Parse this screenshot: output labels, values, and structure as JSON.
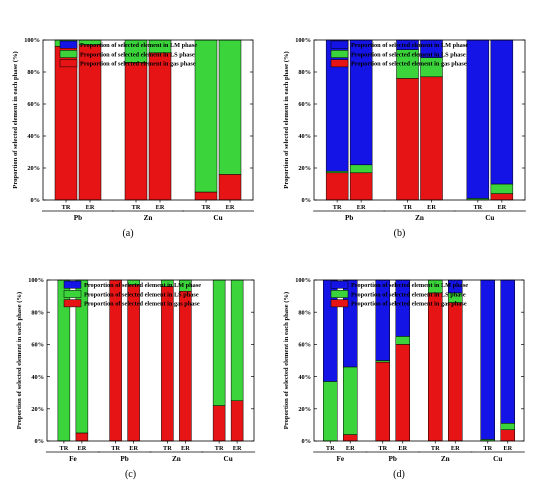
{
  "legend_labels": [
    "Proportion of selected element in LM phase",
    "Proportion of selected element in LS phase",
    "Proportion of selected element in gas phase"
  ],
  "colors": {
    "LM": "#1414e6",
    "LS": "#3bd43b",
    "gas": "#e61414"
  },
  "chart_data": [
    {
      "type": "bar",
      "panel_label": "(a)",
      "ylabel": "Proportion of selected element in each phase (%)",
      "ylim": [
        0,
        100
      ],
      "yticks": [
        "0%",
        "20%",
        "40%",
        "60%",
        "80%",
        "100%"
      ],
      "groups": [
        "Pb",
        "Zn",
        "Cu"
      ],
      "bar_labels": [
        "TR",
        "ER"
      ],
      "legend": [
        "Proportion of selected element in LM phase",
        "Proportion of selected element in LS phase",
        "Proportion of selected element in gas phase"
      ],
      "bars": [
        {
          "group": "Pb",
          "label": "TR",
          "gas": 96,
          "LS": 4,
          "LM": 0
        },
        {
          "group": "Pb",
          "label": "ER",
          "gas": 97,
          "LS": 3,
          "LM": 0
        },
        {
          "group": "Zn",
          "label": "TR",
          "gas": 86,
          "LS": 14,
          "LM": 0
        },
        {
          "group": "Zn",
          "label": "ER",
          "gas": 92,
          "LS": 8,
          "LM": 0
        },
        {
          "group": "Cu",
          "label": "TR",
          "gas": 5,
          "LS": 95,
          "LM": 0
        },
        {
          "group": "Cu",
          "label": "ER",
          "gas": 16,
          "LS": 84,
          "LM": 0
        }
      ]
    },
    {
      "type": "bar",
      "panel_label": "(b)",
      "ylabel": "Proportion of selected element in each phase (%)",
      "ylim": [
        0,
        100
      ],
      "yticks": [
        "0%",
        "20%",
        "40%",
        "60%",
        "80%",
        "100%"
      ],
      "groups": [
        "Pb",
        "Zn",
        "Cu"
      ],
      "bar_labels": [
        "TR",
        "ER"
      ],
      "legend": [
        "Proportion of selected element in LM phase",
        "Proportion of selected element in LS phase",
        "Proportion of selected element in gas phase"
      ],
      "bars": [
        {
          "group": "Pb",
          "label": "TR",
          "gas": 17,
          "LS": 1,
          "LM": 82
        },
        {
          "group": "Pb",
          "label": "ER",
          "gas": 17,
          "LS": 5,
          "LM": 78
        },
        {
          "group": "Zn",
          "label": "TR",
          "gas": 76,
          "LS": 18,
          "LM": 6
        },
        {
          "group": "Zn",
          "label": "ER",
          "gas": 77,
          "LS": 12,
          "LM": 11
        },
        {
          "group": "Cu",
          "label": "TR",
          "gas": 0,
          "LS": 1,
          "LM": 99
        },
        {
          "group": "Cu",
          "label": "ER",
          "gas": 4,
          "LS": 6,
          "LM": 90
        }
      ]
    },
    {
      "type": "bar",
      "panel_label": "(c)",
      "ylabel": "Proportion of selected element in each phase (%)",
      "ylim": [
        0,
        100
      ],
      "yticks": [
        "0%",
        "20%",
        "40%",
        "60%",
        "80%",
        "100%"
      ],
      "groups": [
        "Fe",
        "Pb",
        "Zn",
        "Cu"
      ],
      "bar_labels": [
        "TR",
        "ER"
      ],
      "legend": [
        "Proportion of selected element in LM phase",
        "Proportion of selected element in LS phase",
        "Proportion of selected element in gas phase"
      ],
      "bars": [
        {
          "group": "Fe",
          "label": "TR",
          "gas": 0,
          "LS": 100,
          "LM": 0
        },
        {
          "group": "Fe",
          "label": "ER",
          "gas": 5,
          "LS": 95,
          "LM": 0
        },
        {
          "group": "Pb",
          "label": "TR",
          "gas": 100,
          "LS": 0,
          "LM": 0
        },
        {
          "group": "Pb",
          "label": "ER",
          "gas": 97,
          "LS": 3,
          "LM": 0
        },
        {
          "group": "Zn",
          "label": "TR",
          "gas": 96,
          "LS": 4,
          "LM": 0
        },
        {
          "group": "Zn",
          "label": "ER",
          "gas": 93,
          "LS": 7,
          "LM": 0
        },
        {
          "group": "Cu",
          "label": "TR",
          "gas": 22,
          "LS": 78,
          "LM": 0
        },
        {
          "group": "Cu",
          "label": "ER",
          "gas": 25,
          "LS": 75,
          "LM": 0
        }
      ]
    },
    {
      "type": "bar",
      "panel_label": "(d)",
      "ylabel": "Proportion of selected element in each phase (%)",
      "ylim": [
        0,
        100
      ],
      "yticks": [
        "0%",
        "20%",
        "40%",
        "60%",
        "80%",
        "100%"
      ],
      "groups": [
        "Fe",
        "Pb",
        "Zn",
        "Cu"
      ],
      "bar_labels": [
        "TR",
        "ER"
      ],
      "legend": [
        "Proportion of selected element in LM phase",
        "Proportion of selected element in LS phase",
        "Proportion of selected element in gas phase"
      ],
      "bars": [
        {
          "group": "Fe",
          "label": "TR",
          "gas": 0,
          "LS": 37,
          "LM": 63
        },
        {
          "group": "Fe",
          "label": "ER",
          "gas": 4,
          "LS": 42,
          "LM": 54
        },
        {
          "group": "Pb",
          "label": "TR",
          "gas": 49,
          "LS": 1,
          "LM": 50
        },
        {
          "group": "Pb",
          "label": "ER",
          "gas": 60,
          "LS": 5,
          "LM": 35
        },
        {
          "group": "Zn",
          "label": "TR",
          "gas": 92,
          "LS": 8,
          "LM": 0
        },
        {
          "group": "Zn",
          "label": "ER",
          "gas": 86,
          "LS": 6,
          "LM": 8
        },
        {
          "group": "Cu",
          "label": "TR",
          "gas": 0,
          "LS": 1,
          "LM": 99
        },
        {
          "group": "Cu",
          "label": "ER",
          "gas": 7,
          "LS": 4,
          "LM": 89
        }
      ]
    }
  ]
}
